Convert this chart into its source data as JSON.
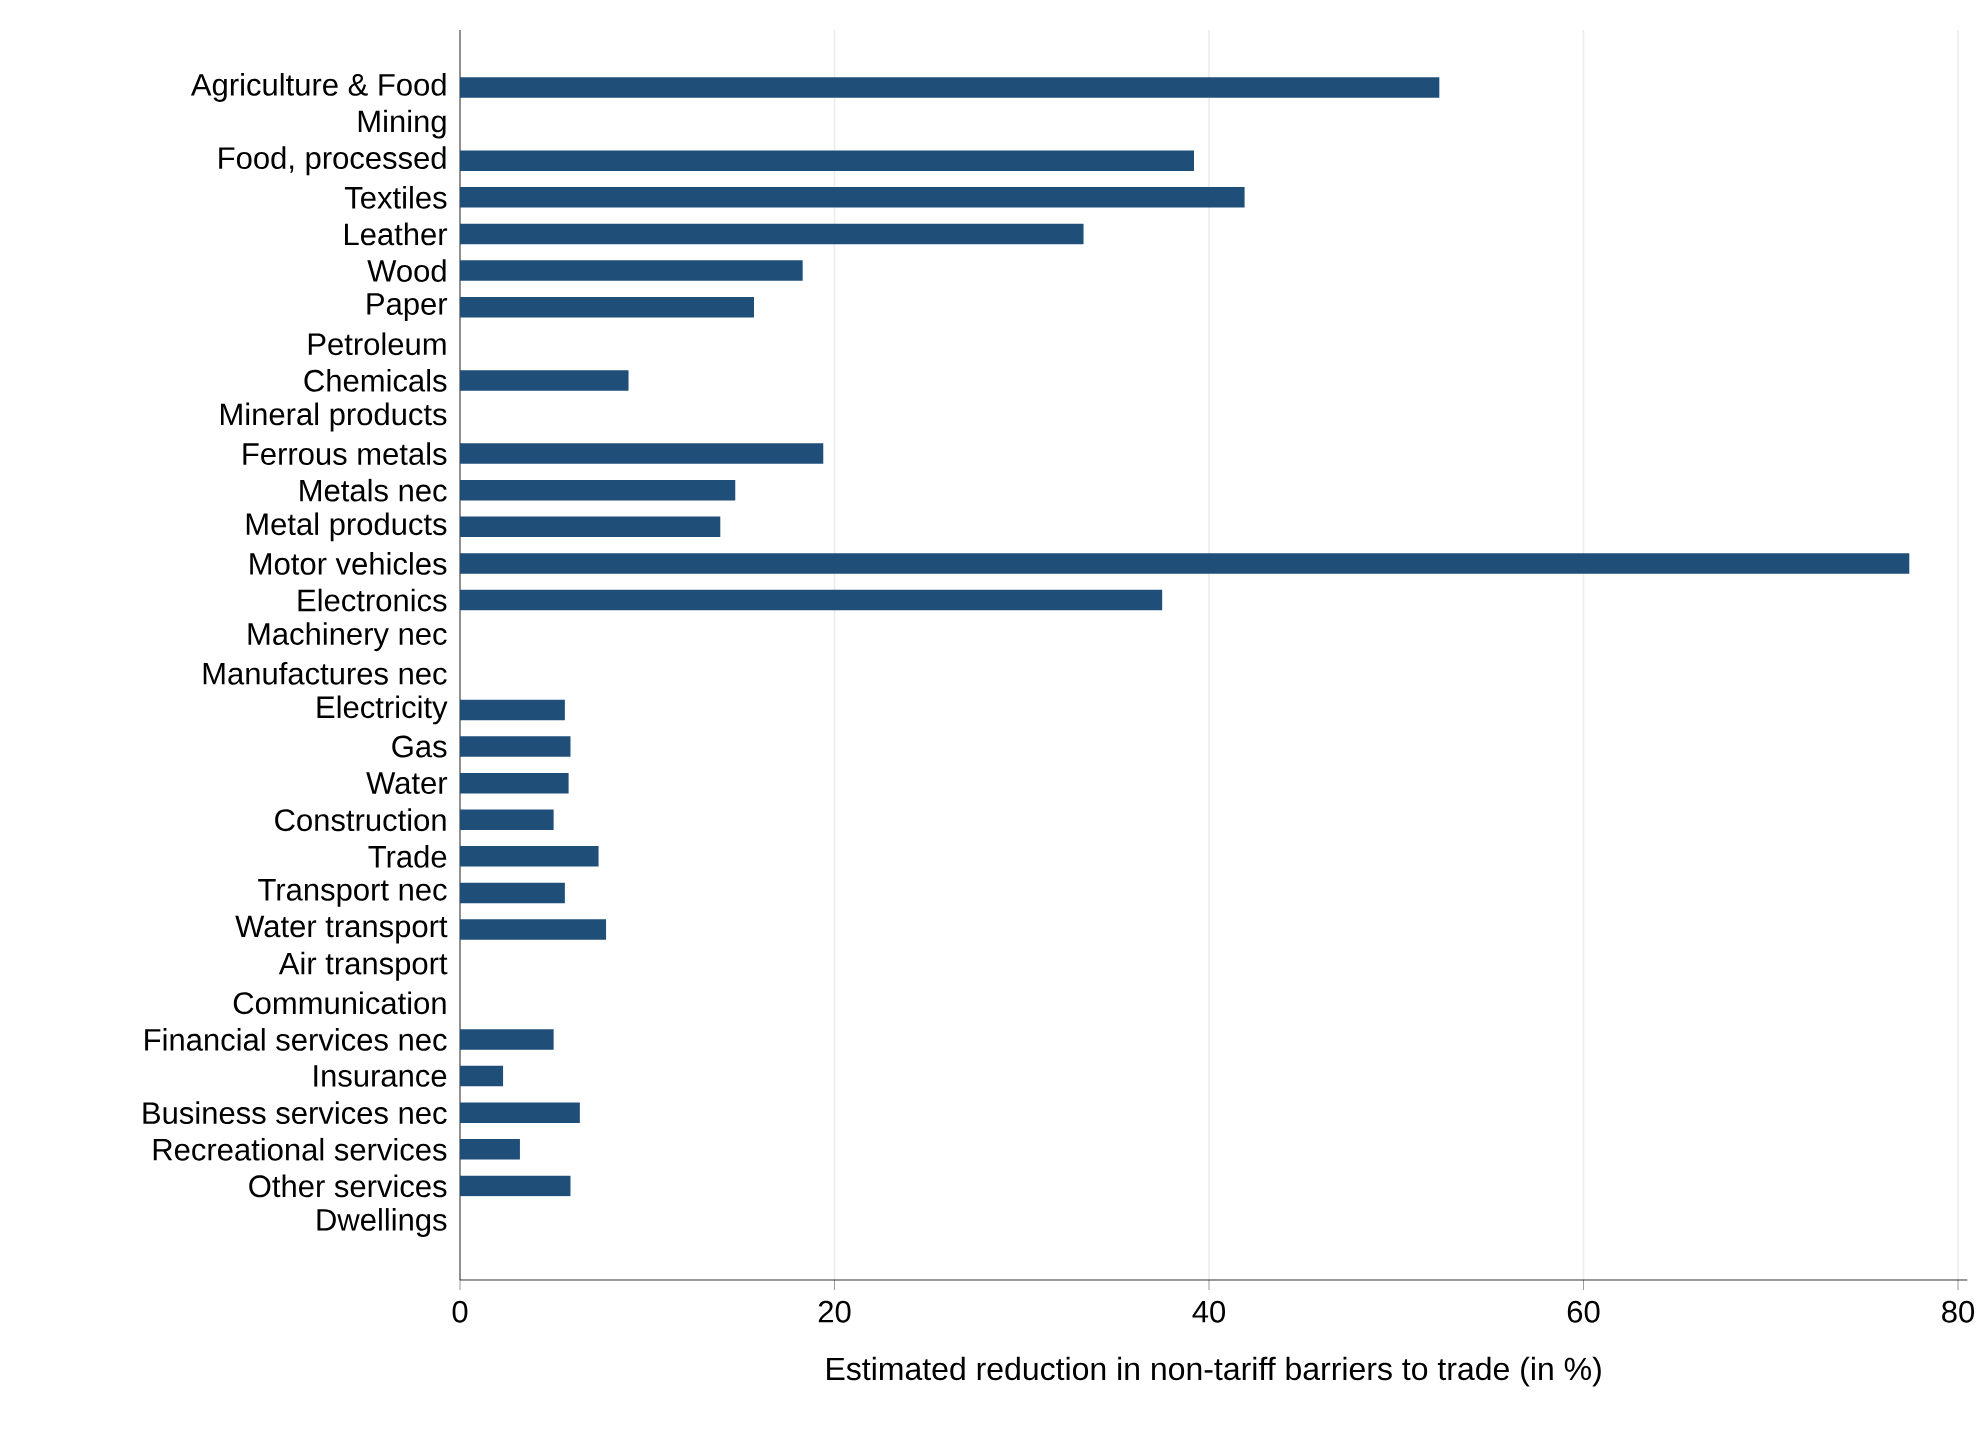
{
  "chart_data": {
    "type": "bar",
    "orientation": "horizontal",
    "xlabel": "Estimated reduction in non-tariff barriers to trade (in %)",
    "categories": [
      "Agriculture & Food",
      "Mining",
      "Food, processed",
      "Textiles",
      "Leather",
      "Wood",
      "Paper",
      "Petroleum",
      "Chemicals",
      "Mineral products",
      "Ferrous metals",
      "Metals nec",
      "Metal products",
      "Motor vehicles",
      "Electronics",
      "Machinery nec",
      "Manufactures nec",
      "Electricity",
      "Gas",
      "Water",
      "Construction",
      "Trade",
      "Transport nec",
      "Water transport",
      "Air transport",
      "Communication",
      "Financial services nec",
      "Insurance",
      "Business services nec",
      "Recreational services",
      "Other services",
      "Dwellings"
    ],
    "values": [
      52.3,
      null,
      39.2,
      41.9,
      33.3,
      18.3,
      15.7,
      null,
      9.0,
      null,
      19.4,
      14.7,
      13.9,
      77.4,
      37.5,
      null,
      null,
      5.6,
      5.9,
      5.8,
      5.0,
      7.4,
      5.6,
      7.8,
      null,
      null,
      5.0,
      2.3,
      6.4,
      3.2,
      5.9,
      null
    ],
    "color": "#1f4e79",
    "xlim": [
      0,
      80.5
    ],
    "xticks": [
      0,
      20,
      40,
      60,
      80
    ],
    "grid": "x"
  }
}
